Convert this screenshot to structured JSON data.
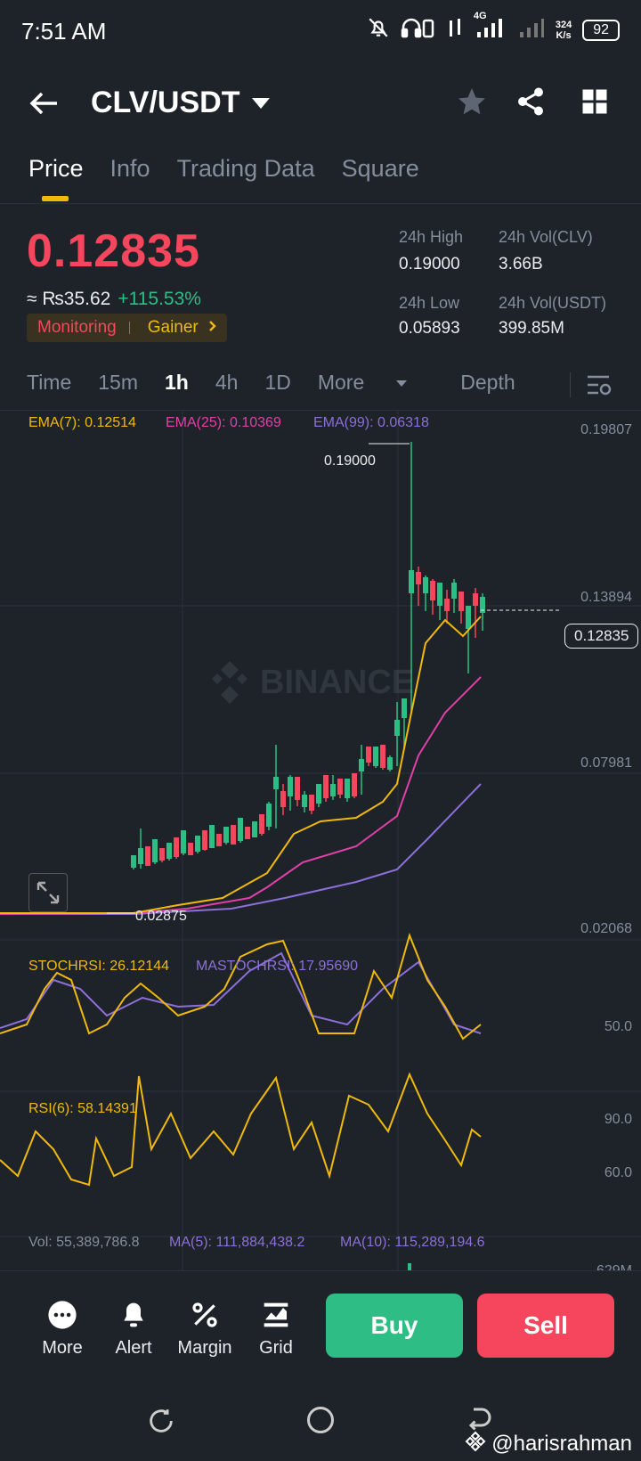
{
  "status": {
    "time": "7:51 AM",
    "net": "4G",
    "speed": "324",
    "speed_unit": "K/s",
    "battery": "92"
  },
  "header": {
    "pair": "CLV/USDT"
  },
  "tabs": [
    "Price",
    "Info",
    "Trading Data",
    "Square"
  ],
  "summary": {
    "price": "0.12835",
    "local_price": "≈ ₨35.62",
    "change": "+115.53%",
    "tag1": "Monitoring",
    "tag2": "Gainer",
    "high_label": "24h High",
    "high": "0.19000",
    "low_label": "24h Low",
    "low": "0.05893",
    "vol_clv_label": "24h Vol(CLV)",
    "vol_clv": "3.66B",
    "vol_usdt_label": "24h Vol(USDT)",
    "vol_usdt": "399.85M"
  },
  "intervals": [
    "Time",
    "15m",
    "1h",
    "4h",
    "1D",
    "More",
    "Depth"
  ],
  "active_interval": "1h",
  "chart": {
    "ema7": "EMA(7): 0.12514",
    "ema25": "EMA(25): 0.10369",
    "ema99": "EMA(99): 0.06318",
    "axis": [
      "0.19807",
      "0.13894",
      "0.07981",
      "0.02068"
    ],
    "current": "0.12835",
    "max_label": "0.19000",
    "min_label": "0.02875",
    "watermark": "BINANCE",
    "stoch": "STOCHRSI: 26.12144",
    "mastoch": "MASTOCHRSI: 17.95690",
    "stoch_axis": "50.0",
    "rsi": "RSI(6): 58.14391",
    "rsi_axis_1": "90.0",
    "rsi_axis_2": "60.0",
    "vol": "Vol: 55,389,786.8",
    "vol_ma5": "MA(5): 111,884,438.2",
    "vol_ma10": "MA(10): 115,289,194.6",
    "vol_axis": "629M",
    "colors": {
      "up": "#2ebd85",
      "down": "#f6465d",
      "ema7": "#f0b90b",
      "ema25": "#e040a8",
      "ema99": "#8c6fd9"
    }
  },
  "chart_data": {
    "type": "candlestick",
    "ylim": [
      0.02068,
      0.19807
    ],
    "y_ticks": [
      0.19807,
      0.13894,
      0.07981,
      0.02068
    ],
    "max_marker": 0.19,
    "min_marker": 0.02875,
    "current_price": 0.12835,
    "indicators": {
      "EMA(7)": 0.12514,
      "EMA(25)": 0.10369,
      "EMA(99)": 0.06318,
      "STOCHRSI": 26.12144,
      "MASTOCHRSI": 17.9569,
      "RSI(6)": 58.14391,
      "Vol": 55389786.8,
      "MA(5)": 111884438.2,
      "MA(10)": 115289194.6
    }
  },
  "bottom": {
    "more": "More",
    "alert": "Alert",
    "margin": "Margin",
    "grid": "Grid",
    "buy": "Buy",
    "sell": "Sell"
  },
  "watermark": "@harisrahman"
}
